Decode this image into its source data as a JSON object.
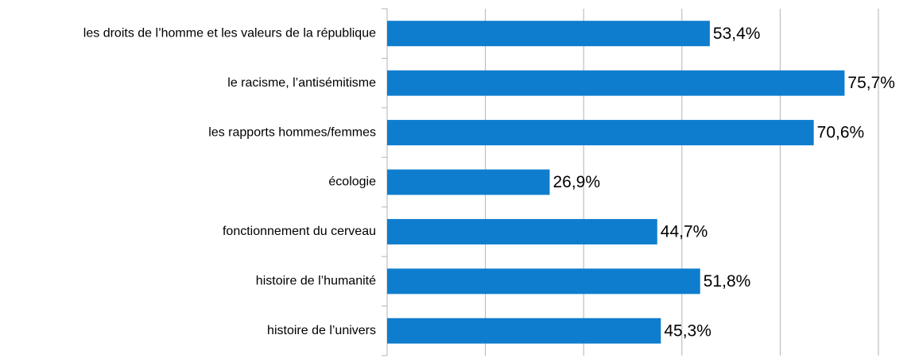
{
  "chart_data": {
    "type": "barh",
    "categories": [
      "les droits de l’homme et les valeurs de la république",
      "le racisme, l’antisémitisme",
      "les rapports hommes/femmes",
      "écologie",
      "fonctionnement du cerveau",
      "histoire de l’humanité",
      "histoire de l’univers"
    ],
    "values": [
      53.4,
      75.7,
      70.6,
      26.9,
      44.7,
      51.8,
      45.3
    ],
    "value_labels": [
      "53,4%",
      "75,7%",
      "70,6%",
      "26,9%",
      "44,7%",
      "51,8%",
      "45,3%"
    ],
    "color": "#0e7dce",
    "xlim": [
      0,
      81.3
    ],
    "xticks": [
      0,
      16.26,
      32.52,
      48.78,
      65.04,
      81.3
    ],
    "grid": true
  }
}
